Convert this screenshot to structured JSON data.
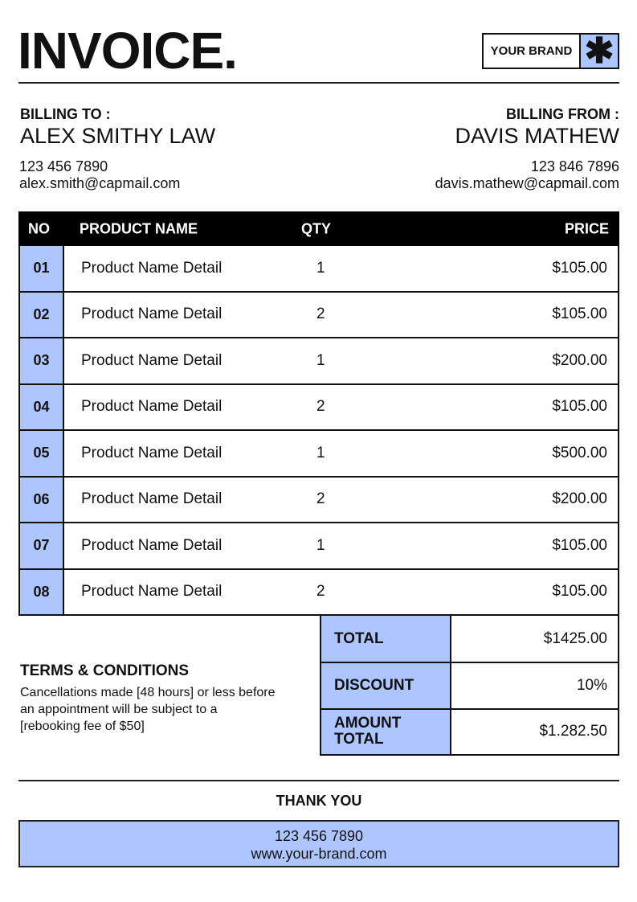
{
  "header": {
    "title": "INVOICE.",
    "brand": "YOUR BRAND",
    "brand_icon": "asterisk-icon"
  },
  "billing_to": {
    "label": "BILLING TO :",
    "name": "ALEX SMITHY LAW",
    "phone": "123 456 7890",
    "email": "alex.smith@capmail.com"
  },
  "billing_from": {
    "label": "BILLING FROM :",
    "name": "DAVIS MATHEW",
    "phone": "123 846 7896",
    "email": "davis.mathew@capmail.com"
  },
  "table": {
    "headers": {
      "no": "NO",
      "name": "PRODUCT NAME",
      "qty": "QTY",
      "price": "PRICE"
    },
    "rows": [
      {
        "no": "01",
        "name": "Product Name Detail",
        "qty": "1",
        "price": "$105.00"
      },
      {
        "no": "02",
        "name": "Product Name Detail",
        "qty": "2",
        "price": "$105.00"
      },
      {
        "no": "03",
        "name": "Product Name Detail",
        "qty": "1",
        "price": "$200.00"
      },
      {
        "no": "04",
        "name": "Product Name Detail",
        "qty": "2",
        "price": "$105.00"
      },
      {
        "no": "05",
        "name": "Product Name Detail",
        "qty": "1",
        "price": "$500.00"
      },
      {
        "no": "06",
        "name": "Product Name Detail",
        "qty": "2",
        "price": "$200.00"
      },
      {
        "no": "07",
        "name": "Product Name Detail",
        "qty": "1",
        "price": "$105.00"
      },
      {
        "no": "08",
        "name": "Product Name Detail",
        "qty": "2",
        "price": "$105.00"
      }
    ]
  },
  "totals": [
    {
      "label": "TOTAL",
      "value": "$1425.00"
    },
    {
      "label": "DISCOUNT",
      "value": "10%"
    },
    {
      "label": "AMOUNT TOTAL",
      "value": "$1.282.50"
    }
  ],
  "terms": {
    "title": "TERMS & CONDITIONS",
    "body": "Cancellations made [48 hours] or less before an appointment will be subject to a [rebooking fee of $50]"
  },
  "footer": {
    "thanks": "THANK YOU",
    "phone": "123 456 7890",
    "website": "www.your-brand.com"
  },
  "colors": {
    "accent": "#adc6ff",
    "dark": "#000000"
  }
}
